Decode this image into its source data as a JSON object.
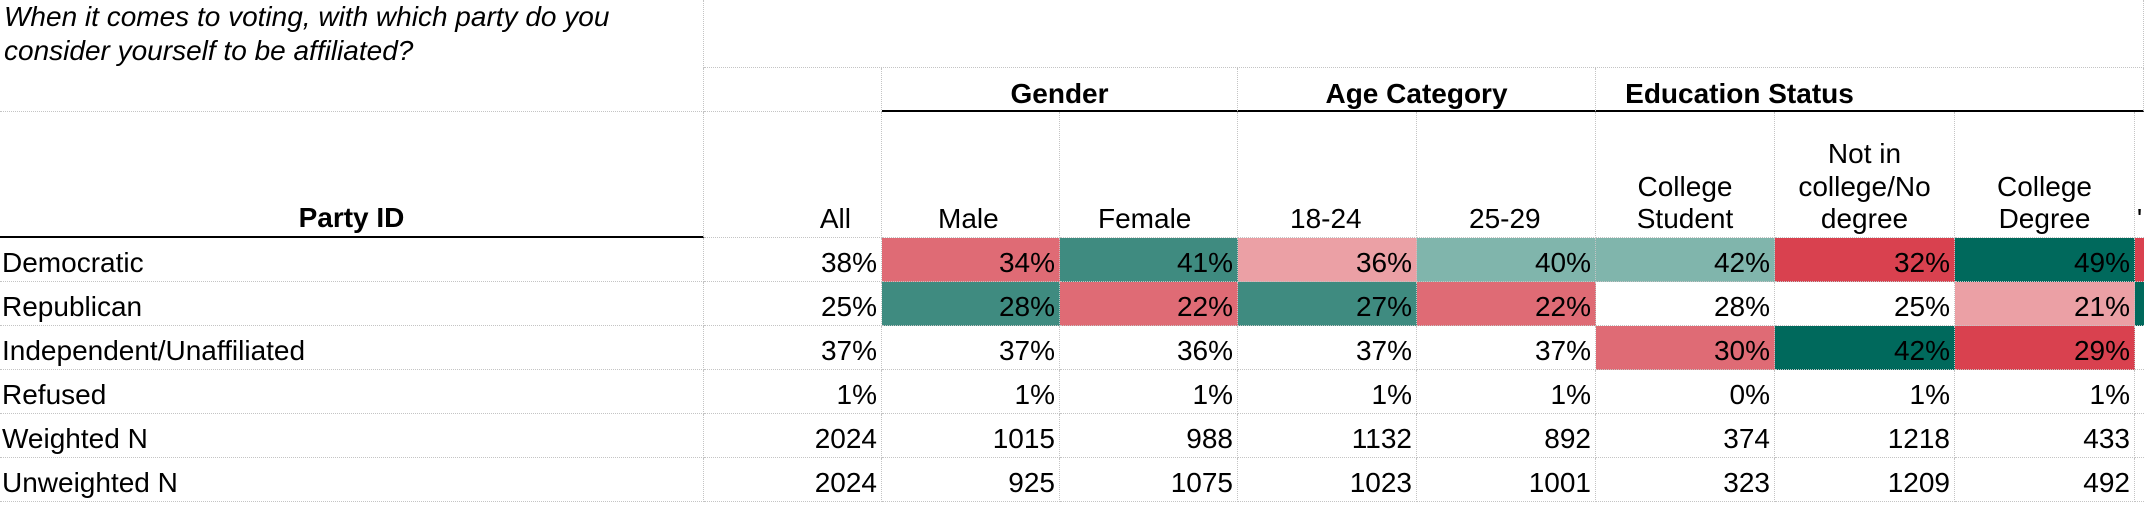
{
  "question": "When it comes to voting, with which party do you consider yourself to be affiliated?",
  "row_header": "Party ID",
  "groups": [
    {
      "label": "Gender"
    },
    {
      "label": "Age Category"
    },
    {
      "label": "Education Status"
    }
  ],
  "columns": [
    "All",
    "Male",
    "Female",
    "18-24",
    "25-29",
    "College Student",
    "Not in college/No degree",
    "College Degree"
  ],
  "rows": [
    {
      "label": "Democratic",
      "values": [
        "38%",
        "34%",
        "41%",
        "36%",
        "40%",
        "42%",
        "32%",
        "49%"
      ]
    },
    {
      "label": "Republican",
      "values": [
        "25%",
        "28%",
        "22%",
        "27%",
        "22%",
        "28%",
        "25%",
        "21%"
      ]
    },
    {
      "label": "Independent/Unaffiliated",
      "values": [
        "37%",
        "37%",
        "36%",
        "37%",
        "37%",
        "30%",
        "42%",
        "29%"
      ]
    },
    {
      "label": "Refused",
      "values": [
        "1%",
        "1%",
        "1%",
        "1%",
        "1%",
        "0%",
        "1%",
        "1%"
      ]
    },
    {
      "label": "Weighted N",
      "values": [
        "2024",
        "1015",
        "988",
        "1132",
        "892",
        "374",
        "1218",
        "433"
      ]
    },
    {
      "label": "Unweighted N",
      "values": [
        "2024",
        "925",
        "1075",
        "1023",
        "1001",
        "323",
        "1209",
        "492"
      ]
    }
  ],
  "heat_colors": {
    "deep_green": "#00695c",
    "mid_green": "#3f8b80",
    "light_green": "#80b5ac",
    "deep_red": "#d9414f",
    "mid_red": "#df6b75",
    "light_red": "#eba0a5"
  },
  "cell_colors": [
    [
      null,
      "mid_red",
      "mid_green",
      "light_red",
      "light_green",
      "light_green",
      "deep_red",
      "deep_green"
    ],
    [
      null,
      "mid_green",
      "mid_red",
      "mid_green",
      "mid_red",
      null,
      null,
      "light_red"
    ],
    [
      null,
      null,
      null,
      null,
      null,
      "mid_red",
      "deep_green",
      "deep_red"
    ],
    [
      null,
      null,
      null,
      null,
      null,
      null,
      null,
      null
    ],
    [
      null,
      null,
      null,
      null,
      null,
      null,
      null,
      null
    ],
    [
      null,
      null,
      null,
      null,
      null,
      null,
      null,
      null
    ]
  ],
  "edge_colors": {
    "row0": "deep_red",
    "row1": "deep_green"
  }
}
